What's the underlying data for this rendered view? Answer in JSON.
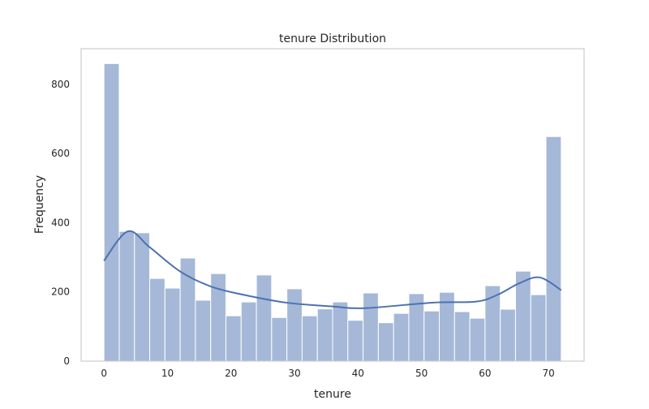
{
  "chart_data": {
    "type": "bar",
    "title": "tenure Distribution",
    "xlabel": "tenure",
    "ylabel": "Frequency",
    "xlim": [
      -3.6,
      75.6
    ],
    "ylim": [
      0,
      903
    ],
    "xticks": [
      0,
      10,
      20,
      30,
      40,
      50,
      60,
      70
    ],
    "yticks": [
      0,
      200,
      400,
      600,
      800
    ],
    "grid": false,
    "bin_edges_start": 0,
    "bin_width": 2.4,
    "values": [
      860,
      375,
      371,
      239,
      211,
      298,
      176,
      253,
      131,
      171,
      249,
      126,
      209,
      131,
      151,
      171,
      118,
      197,
      111,
      138,
      195,
      145,
      199,
      143,
      124,
      218,
      150,
      260,
      192,
      649
    ],
    "kde": {
      "x": [
        0,
        3.75,
        7.2,
        12,
        16.8,
        21.9,
        28.7,
        36,
        41,
        51.7,
        58.6,
        62,
        65.4,
        68.6,
        72
      ],
      "y": [
        290,
        375,
        329,
        259,
        216,
        192,
        169,
        158,
        153,
        169,
        172,
        192,
        225,
        242,
        205
      ]
    },
    "colors": {
      "bar": "#a5b8d8",
      "bar_edge": "#ffffff",
      "line": "#4c72b0",
      "frame": "#cccccc"
    }
  }
}
